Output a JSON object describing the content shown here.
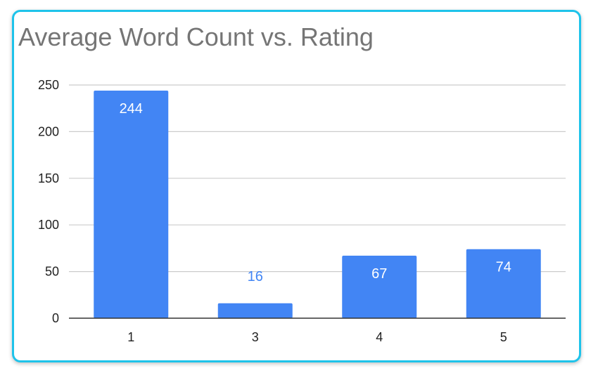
{
  "chart_data": {
    "type": "bar",
    "title": "Average Word Count vs. Rating",
    "xlabel": "",
    "ylabel": "",
    "categories": [
      "1",
      "3",
      "4",
      "5"
    ],
    "values": [
      244,
      16,
      67,
      74
    ],
    "data_labels": [
      "244",
      "16",
      "67",
      "74"
    ],
    "ylim": [
      0,
      250
    ],
    "yticks": [
      0,
      50,
      100,
      150,
      200,
      250
    ],
    "ytick_labels": [
      "0",
      "50",
      "100",
      "150",
      "200",
      "250"
    ],
    "grid": true,
    "legend": "none",
    "bar_color": "#4285f4",
    "label_color_inside": "#ffffff",
    "label_color_outside": "#4285f4",
    "grid_color": "#cccccc",
    "axis_color": "#333333",
    "frame_color": "#1ec3ea"
  }
}
